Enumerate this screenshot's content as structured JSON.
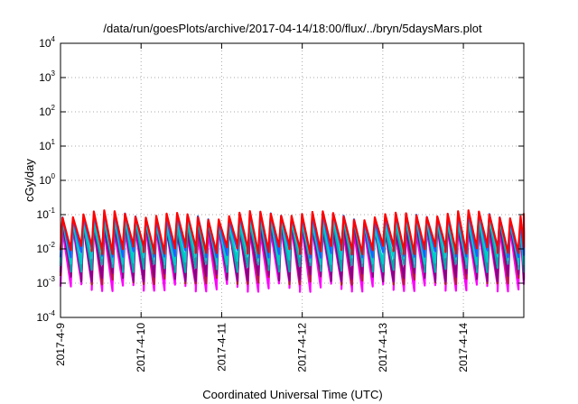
{
  "chart_data": {
    "type": "line",
    "title": "/data/run/goesPlots/archive/2017-04-14/18:00/flux/../bryn/5daysMars.plot",
    "xlabel": "Coordinated Universal Time (UTC)",
    "ylabel": "cGy/day",
    "yscale": "log",
    "ylim": [
      "1e-4",
      "1e4"
    ],
    "xlim": [
      "2017-04-09 00:00",
      "2017-04-14 18:00"
    ],
    "grid": true,
    "legend": "none",
    "x_ticks": [
      "2017-4-9",
      "2017-4-10",
      "2017-4-11",
      "2017-4-12",
      "2017-4-13",
      "2017-4-14"
    ],
    "y_ticks": [
      {
        "base": "10",
        "exp": "-4"
      },
      {
        "base": "10",
        "exp": "-3"
      },
      {
        "base": "10",
        "exp": "-2"
      },
      {
        "base": "10",
        "exp": "-1"
      },
      {
        "base": "10",
        "exp": "0"
      },
      {
        "base": "10",
        "exp": "1"
      },
      {
        "base": "10",
        "exp": "2"
      },
      {
        "base": "10",
        "exp": "3"
      },
      {
        "base": "10",
        "exp": "4"
      }
    ],
    "cycle_hours": 3.1,
    "series": [
      {
        "color": "#ff00ff",
        "peak": 0.035,
        "trough": 0.0008
      },
      {
        "color": "#b22222",
        "peak": 0.05,
        "trough": 0.0013
      },
      {
        "color": "#8b008b",
        "peak": 0.045,
        "trough": 0.0016
      },
      {
        "color": "#00aaaa",
        "peak": 0.06,
        "trough": 0.003
      },
      {
        "color": "#00cccc",
        "peak": 0.07,
        "trough": 0.005
      },
      {
        "color": "#1f5fff",
        "peak": 0.09,
        "trough": 0.008
      },
      {
        "color": "#ff0000",
        "peak": 0.1,
        "trough": 0.01
      }
    ]
  }
}
